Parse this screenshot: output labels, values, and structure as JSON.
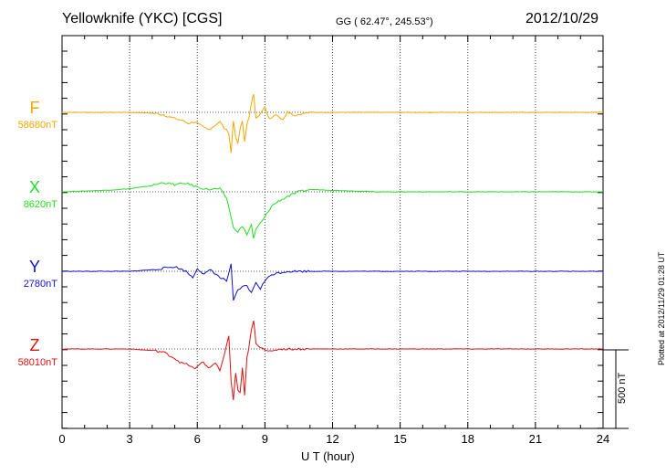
{
  "header": {
    "title": "Yellowknife (YKC)  [CGS]",
    "coords": "GG ( 62.47°, 245.53°)",
    "date": "2012/10/29"
  },
  "colors": {
    "F": "#f0a800",
    "X": "#22dd22",
    "Y": "#1010cc",
    "Z": "#dd1111",
    "axis": "#000000",
    "grid": "#444444"
  },
  "chart_data": {
    "type": "line",
    "xlabel": "U T (hour)",
    "xlim": [
      0,
      24
    ],
    "xticks": [
      "0",
      "3",
      "6",
      "9",
      "12",
      "15",
      "18",
      "21",
      "24"
    ],
    "grid": true,
    "scale_bar": {
      "value": 500,
      "label": "500 nT"
    },
    "plotted_at": "Plotted at 2012/11/29 01:28 UT",
    "series": [
      {
        "name": "F",
        "base_label": "58680nT",
        "color": "#f0a800",
        "x": [
          0,
          1,
          2,
          3,
          4,
          4.5,
          5,
          5.3,
          5.6,
          5.9,
          6.2,
          6.5,
          6.8,
          7.0,
          7.2,
          7.4,
          7.5,
          7.6,
          7.7,
          7.8,
          7.9,
          8.0,
          8.1,
          8.2,
          8.3,
          8.4,
          8.5,
          8.6,
          8.8,
          9.0,
          9.2,
          9.5,
          9.8,
          10.0,
          10.3,
          10.6,
          11,
          12,
          13,
          14,
          15,
          16,
          17,
          18,
          19,
          20,
          21,
          22,
          23,
          24
        ],
        "y": [
          0,
          0,
          0,
          0,
          -5,
          -15,
          -40,
          -50,
          -70,
          -60,
          -90,
          -110,
          -80,
          -60,
          -100,
          -130,
          -260,
          -50,
          -160,
          -200,
          -100,
          -60,
          -180,
          -80,
          -30,
          60,
          120,
          -30,
          -10,
          30,
          -40,
          -10,
          -50,
          10,
          -20,
          -10,
          0,
          0,
          0,
          0,
          0,
          0,
          0,
          0,
          0,
          0,
          0,
          0,
          0,
          0
        ]
      },
      {
        "name": "X",
        "base_label": "8620nT",
        "color": "#22dd22",
        "x": [
          0,
          1,
          2,
          3,
          4,
          4.5,
          5,
          5.5,
          6,
          6.5,
          7,
          7.3,
          7.5,
          7.6,
          7.8,
          8.0,
          8.2,
          8.4,
          8.5,
          8.6,
          8.8,
          9.0,
          9.3,
          9.6,
          10,
          10.5,
          11,
          12,
          13,
          14,
          15,
          16,
          17,
          18,
          19,
          20,
          21,
          22,
          23,
          24
        ],
        "y": [
          0,
          5,
          10,
          20,
          40,
          60,
          45,
          55,
          30,
          15,
          20,
          -40,
          -160,
          -230,
          -250,
          -220,
          -270,
          -210,
          -300,
          -240,
          -200,
          -160,
          -90,
          -60,
          -30,
          0,
          15,
          10,
          5,
          0,
          0,
          0,
          0,
          0,
          0,
          0,
          0,
          0,
          0,
          0
        ]
      },
      {
        "name": "Y",
        "base_label": "2780nT",
        "color": "#1010cc",
        "x": [
          0,
          1,
          2,
          3,
          4,
          4.5,
          5,
          5.5,
          5.8,
          6.0,
          6.3,
          6.6,
          7.0,
          7.3,
          7.5,
          7.6,
          7.8,
          8.0,
          8.2,
          8.4,
          8.6,
          8.8,
          9.0,
          9.3,
          9.6,
          10,
          11,
          12,
          13,
          14,
          15,
          16,
          17,
          18,
          19,
          20,
          21,
          22,
          23,
          24
        ],
        "y": [
          0,
          0,
          0,
          0,
          10,
          20,
          30,
          0,
          -40,
          20,
          -20,
          10,
          -40,
          -60,
          40,
          -190,
          -120,
          -100,
          -90,
          -140,
          -70,
          -110,
          -60,
          -20,
          -10,
          0,
          0,
          0,
          0,
          0,
          0,
          0,
          0,
          0,
          0,
          0,
          0,
          0,
          0,
          0
        ]
      },
      {
        "name": "Z",
        "base_label": "58010nT",
        "color": "#dd1111",
        "x": [
          0,
          1,
          2,
          3,
          4,
          4.5,
          5,
          5.3,
          5.6,
          5.9,
          6.2,
          6.5,
          6.8,
          7.0,
          7.2,
          7.4,
          7.5,
          7.6,
          7.7,
          7.8,
          7.9,
          8.0,
          8.1,
          8.2,
          8.3,
          8.4,
          8.5,
          8.6,
          8.8,
          9.0,
          9.3,
          9.6,
          10,
          10.5,
          11,
          12,
          13,
          14,
          15,
          16,
          17,
          18,
          19,
          20,
          21,
          22,
          23,
          24
        ],
        "y": [
          0,
          0,
          0,
          0,
          -10,
          -20,
          -60,
          -90,
          -100,
          -130,
          -80,
          -120,
          -90,
          -140,
          -40,
          80,
          -200,
          -330,
          -150,
          -260,
          -280,
          -120,
          -300,
          -60,
          20,
          120,
          180,
          40,
          10,
          0,
          -20,
          0,
          0,
          0,
          0,
          0,
          0,
          0,
          0,
          0,
          0,
          0,
          0,
          0,
          0,
          0,
          0,
          0
        ]
      }
    ]
  }
}
